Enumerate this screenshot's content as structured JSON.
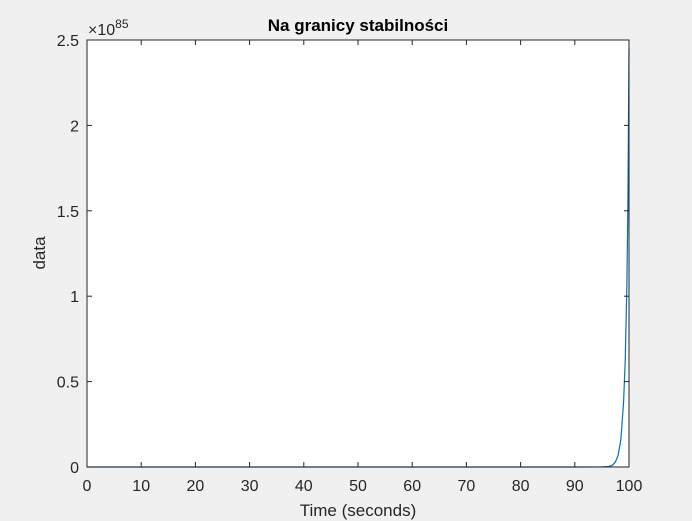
{
  "chart_data": {
    "type": "line",
    "title": "Na granicy stabilności",
    "xlabel": "Time (seconds)",
    "ylabel": "data",
    "xlim": [
      0,
      100
    ],
    "ylim": [
      0,
      2.5
    ],
    "y_exponent_label": "×10",
    "y_exponent_value": "85",
    "x_ticks": [
      0,
      10,
      20,
      30,
      40,
      50,
      60,
      70,
      80,
      90,
      100
    ],
    "x_tick_labels": [
      "0",
      "10",
      "20",
      "30",
      "40",
      "50",
      "60",
      "70",
      "80",
      "90",
      "100"
    ],
    "y_ticks": [
      0,
      0.5,
      1,
      1.5,
      2,
      2.5
    ],
    "y_tick_labels": [
      "0",
      "0.5",
      "1",
      "1.5",
      "2",
      "2.5"
    ],
    "grid": false,
    "series": [
      {
        "color": "#0072bd",
        "x": [
          0,
          10,
          20,
          30,
          40,
          50,
          60,
          70,
          80,
          90,
          95,
          96,
          96.5,
          97,
          97.5,
          98,
          98.5,
          99,
          99.3,
          99.6,
          99.8,
          100
        ],
        "y": [
          0,
          0,
          0,
          0,
          0,
          0,
          0,
          0,
          0,
          0,
          0.0005,
          0.002,
          0.005,
          0.012,
          0.03,
          0.07,
          0.16,
          0.38,
          0.62,
          1.05,
          1.55,
          2.45
        ]
      }
    ]
  }
}
